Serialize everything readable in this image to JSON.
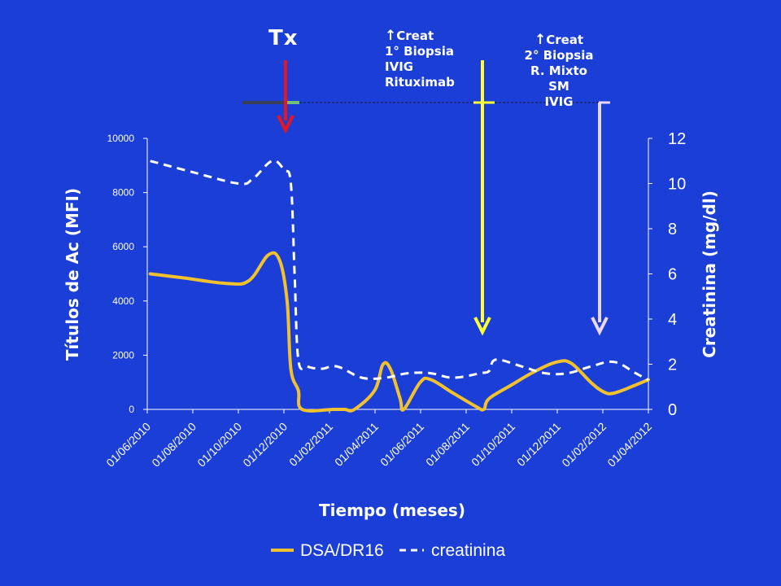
{
  "annotations": {
    "tx": "Tx",
    "event1": {
      "arrow": "↑",
      "title": "Creat",
      "lines": [
        "1° Biopsia",
        "IVIG",
        "Rituximab"
      ]
    },
    "event2": {
      "arrow": "↑",
      "title": "Creat",
      "lines": [
        "2° Biopsia",
        "R. Mixto",
        "SM",
        "IVIG"
      ]
    }
  },
  "colors": {
    "background": "#1b3fd6",
    "dsa": "#f2c12e",
    "creatinina": "#ffffff",
    "tx_arrow": "#e8141f",
    "event1_arrow": "#ffff33",
    "event2_arrow": "#ead7f2"
  },
  "chart_data": {
    "type": "line",
    "xlabel": "Tiempo (meses)",
    "ylabel_left": "Títulos de Ac (MFI)",
    "ylabel_right": "Creatinina (mg/dl)",
    "ylim_left": [
      0,
      10000
    ],
    "ylim_right": [
      0,
      12
    ],
    "yticks_left": [
      "0",
      "2000",
      "4000",
      "6000",
      "8000",
      "10000"
    ],
    "yticks_right": [
      "0",
      "2",
      "4",
      "6",
      "8",
      "10",
      "12"
    ],
    "x_ticks": [
      "01/06/2010",
      "01/08/2010",
      "01/10/2010",
      "01/12/2010",
      "01/02/2011",
      "01/04/2011",
      "01/06/2011",
      "01/08/2011",
      "01/10/2011",
      "01/12/2011",
      "01/02/2012",
      "01/04/2012"
    ],
    "x_range": [
      "2010-06-01",
      "2012-04-01"
    ],
    "legend_position": "bottom",
    "legend_order": [
      "DSA/DR16",
      "creatinina"
    ],
    "series": [
      {
        "name": "DSA/DR16",
        "axis": "left",
        "style": "solid",
        "points": [
          [
            "2010-06-05",
            5000
          ],
          [
            "2010-07-20",
            4850
          ],
          [
            "2010-09-15",
            4650
          ],
          [
            "2010-10-15",
            4750
          ],
          [
            "2010-11-10",
            5700
          ],
          [
            "2010-11-25",
            5500
          ],
          [
            "2010-12-05",
            4000
          ],
          [
            "2010-12-10",
            1500
          ],
          [
            "2010-12-20",
            700
          ],
          [
            "2010-12-25",
            0
          ],
          [
            "2011-02-05",
            0
          ],
          [
            "2011-02-20",
            0
          ],
          [
            "2011-03-05",
            0
          ],
          [
            "2011-04-01",
            700
          ],
          [
            "2011-04-12",
            1650
          ],
          [
            "2011-04-22",
            1500
          ],
          [
            "2011-05-05",
            400
          ],
          [
            "2011-05-10",
            0
          ],
          [
            "2011-06-01",
            1000
          ],
          [
            "2011-06-15",
            1100
          ],
          [
            "2011-07-15",
            600
          ],
          [
            "2011-08-15",
            100
          ],
          [
            "2011-08-25",
            0
          ],
          [
            "2011-09-01",
            400
          ],
          [
            "2011-10-01",
            900
          ],
          [
            "2011-11-01",
            1400
          ],
          [
            "2011-12-01",
            1750
          ],
          [
            "2011-12-20",
            1700
          ],
          [
            "2012-01-15",
            1000
          ],
          [
            "2012-02-01",
            650
          ],
          [
            "2012-02-15",
            600
          ],
          [
            "2012-03-15",
            900
          ],
          [
            "2012-04-01",
            1100
          ]
        ]
      },
      {
        "name": "creatinina",
        "axis": "right",
        "style": "dashed",
        "points": [
          [
            "2010-06-05",
            11.0
          ],
          [
            "2010-08-01",
            10.5
          ],
          [
            "2010-10-01",
            10.0
          ],
          [
            "2010-10-20",
            10.2
          ],
          [
            "2010-11-15",
            11.0
          ],
          [
            "2010-12-01",
            10.6
          ],
          [
            "2010-12-10",
            10.0
          ],
          [
            "2010-12-15",
            6.0
          ],
          [
            "2010-12-20",
            2.2
          ],
          [
            "2011-01-01",
            1.9
          ],
          [
            "2011-01-20",
            1.8
          ],
          [
            "2011-02-10",
            1.9
          ],
          [
            "2011-03-15",
            1.4
          ],
          [
            "2011-04-15",
            1.4
          ],
          [
            "2011-05-15",
            1.6
          ],
          [
            "2011-06-15",
            1.6
          ],
          [
            "2011-07-15",
            1.4
          ],
          [
            "2011-08-20",
            1.6
          ],
          [
            "2011-09-01",
            1.7
          ],
          [
            "2011-09-10",
            2.2
          ],
          [
            "2011-10-15",
            1.9
          ],
          [
            "2011-11-15",
            1.6
          ],
          [
            "2011-12-15",
            1.6
          ],
          [
            "2012-01-15",
            1.9
          ],
          [
            "2012-02-15",
            2.1
          ],
          [
            "2012-03-15",
            1.6
          ],
          [
            "2012-04-01",
            1.3
          ]
        ]
      }
    ]
  }
}
